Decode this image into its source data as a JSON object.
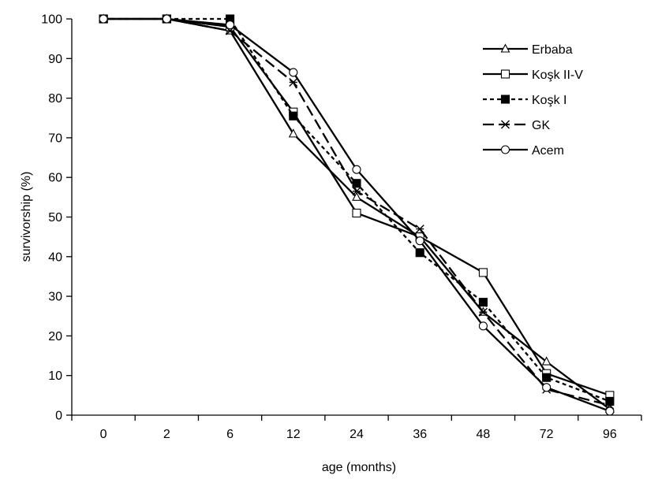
{
  "chart_data": {
    "type": "line",
    "xlabel": "age (months)",
    "ylabel": "survivorship (%)",
    "categories": [
      "0",
      "2",
      "6",
      "12",
      "24",
      "36",
      "48",
      "72",
      "96"
    ],
    "ylim": [
      0,
      100
    ],
    "yticks": [
      "0",
      "10",
      "20",
      "30",
      "40",
      "50",
      "60",
      "70",
      "80",
      "90",
      "100"
    ],
    "grid": false,
    "legend_position": "top-right",
    "series": [
      {
        "name": "Erbaba",
        "marker": "triangle-open",
        "dash": "solid",
        "values": [
          100,
          100,
          97,
          71,
          55,
          45,
          26,
          13.5,
          1.5
        ]
      },
      {
        "name": "Koşk II-V",
        "marker": "square-open",
        "dash": "solid",
        "values": [
          100,
          100,
          98,
          76.5,
          51,
          45,
          36,
          10.5,
          5
        ]
      },
      {
        "name": "Koşk I",
        "marker": "square-filled",
        "dash": "short-dash",
        "values": [
          100,
          100,
          100,
          75.5,
          58.5,
          41,
          28.5,
          9.5,
          3.5
        ]
      },
      {
        "name": "GK",
        "marker": "asterisk",
        "dash": "long-dash",
        "values": [
          100,
          100,
          97,
          84,
          56.5,
          47,
          26,
          6.5,
          2.5
        ]
      },
      {
        "name": "Acem",
        "marker": "circle-open",
        "dash": "solid",
        "values": [
          100,
          100,
          98.5,
          86.5,
          62,
          44,
          22.5,
          7,
          1
        ]
      }
    ]
  }
}
